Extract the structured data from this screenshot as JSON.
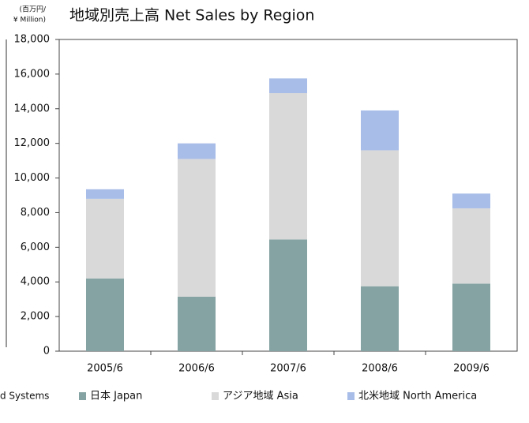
{
  "chart_data": {
    "type": "stacked_bar",
    "title": "地域別売上高  Net Sales by Region",
    "unit_label": [
      "(百万円/",
      "¥ Million)"
    ],
    "cropped_text": "d Systems",
    "categories": [
      "2005/6",
      "2006/6",
      "2007/6",
      "2008/6",
      "2009/6"
    ],
    "series": [
      {
        "name": "日本  Japan",
        "color": "#86a3a3",
        "values": [
          4200,
          3150,
          6450,
          3750,
          3900
        ]
      },
      {
        "name": "アジア地域  Asia",
        "color": "#d9d9d9",
        "values": [
          4600,
          7950,
          8450,
          7850,
          4350
        ]
      },
      {
        "name": "北米地域  North America",
        "color": "#a8bde8",
        "values": [
          550,
          900,
          850,
          2300,
          850
        ]
      }
    ],
    "ylim": [
      0,
      18000
    ],
    "yticks": [
      0,
      {
        "value": 2000,
        "label": "2,000"
      },
      {
        "value": 4000,
        "label": "4,000"
      },
      {
        "value": 6000,
        "label": "6,000"
      },
      {
        "value": 8000,
        "label": "8,000"
      },
      {
        "value": 10000,
        "label": "10,000"
      },
      {
        "value": 12000,
        "label": "12,000"
      },
      {
        "value": 14000,
        "label": "14,000"
      },
      {
        "value": 16000,
        "label": "16,000"
      },
      {
        "value": 18000,
        "label": "18,000"
      }
    ],
    "grid": false
  }
}
